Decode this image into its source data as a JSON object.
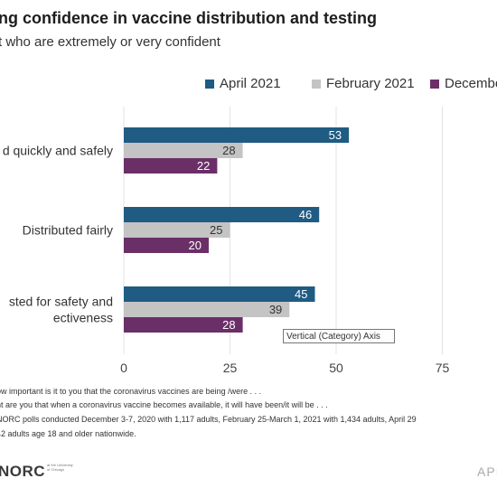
{
  "title": "ng confidence in vaccine distribution and testing",
  "subtitle": "t who are extremely or very confident",
  "chart_data": {
    "type": "bar",
    "orientation": "horizontal",
    "categories": [
      "d quickly and safely",
      "Distributed fairly",
      "sted for safety and|ectiveness"
    ],
    "series": [
      {
        "name": "April 2021",
        "color": "#1f5b82",
        "values": [
          53,
          46,
          45
        ]
      },
      {
        "name": "February 2021",
        "color": "#c4c4c4",
        "values": [
          28,
          25,
          39
        ]
      },
      {
        "name": "December",
        "color": "#6b2f68",
        "values": [
          22,
          20,
          28
        ]
      }
    ],
    "xlim": [
      0,
      88
    ],
    "xticks": [
      "0",
      "25",
      "50",
      "75"
    ],
    "grid": true,
    "legend_position": "top"
  },
  "tooltip": "Vertical (Category) Axis",
  "notes": [
    "ow important is it to you that the coronavirus vaccines are being /were . . .",
    "nt are you that when a coronavirus vaccine becomes available, it will have been/it will be . . .",
    "NORC polls conducted December 3-7, 2020 with 1,117 adults, February 25-March 1, 2021 with 1,434 adults, April 29",
    "42 adults age 18 and older nationwide."
  ],
  "logo": "NORC",
  "logo_sub": "at the University of Chicago",
  "date": "API"
}
